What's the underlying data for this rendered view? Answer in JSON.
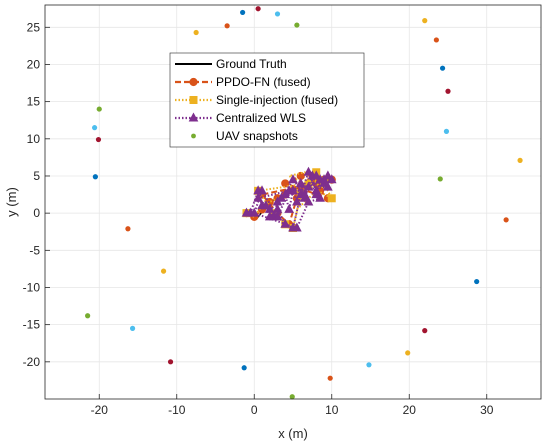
{
  "chart_data": {
    "type": "line",
    "title": "",
    "xlabel": "x (m)",
    "ylabel": "y (m)",
    "xlim": [
      -27,
      37
    ],
    "ylim": [
      -25,
      28
    ],
    "xticks": [
      -20,
      -10,
      0,
      10,
      20,
      30
    ],
    "yticks": [
      -20,
      -15,
      -10,
      -5,
      0,
      5,
      10,
      15,
      20,
      25
    ],
    "xtick_labels": [
      "-20",
      "-10",
      "0",
      "10",
      "20",
      "30"
    ],
    "ytick_labels": [
      "-20",
      "-15",
      "-10",
      "-5",
      "0",
      "5",
      "10",
      "15",
      "20",
      "25"
    ],
    "grid": true,
    "legend_position": "upper-center",
    "series": [
      {
        "name": "Ground Truth",
        "color": "#000000",
        "style": "solid",
        "marker": "none",
        "x": [
          -1,
          0.5,
          2,
          3,
          4.5,
          6,
          7.5,
          9,
          10
        ],
        "y": [
          0,
          -0.5,
          1.5,
          2,
          3,
          3.5,
          4,
          4.5,
          4.5
        ]
      },
      {
        "name": "PPDO-FN (fused)",
        "color": "#D95319",
        "style": "dashed",
        "marker": "circle",
        "x": [
          -1,
          0,
          1,
          2,
          3,
          4,
          5,
          6,
          7,
          8,
          9,
          10,
          1,
          3,
          4.5,
          5.5,
          6.5,
          7.5,
          8.5,
          9.5,
          4,
          6,
          8
        ],
        "y": [
          0,
          -0.5,
          0.5,
          1.5,
          2,
          2.5,
          3,
          3.5,
          4,
          4.5,
          4.5,
          4.5,
          2.5,
          0,
          -1.5,
          2,
          3.5,
          5,
          3,
          2,
          4,
          5,
          4
        ]
      },
      {
        "name": "Single-injection (fused)",
        "color": "#EDB120",
        "style": "dotted",
        "marker": "square",
        "x": [
          -1,
          0,
          1,
          2,
          3,
          4,
          5,
          6,
          7,
          8,
          9,
          10,
          0.5,
          2.5,
          4,
          5,
          6,
          7,
          8,
          9,
          10,
          4.5,
          6.5,
          8.5,
          5.5
        ],
        "y": [
          0,
          -0.5,
          1,
          1.5,
          2,
          2.5,
          3,
          3.5,
          4,
          4.5,
          5,
          4.5,
          3,
          0,
          -1.5,
          -2,
          2.5,
          4,
          5.5,
          4,
          2,
          5,
          5.5,
          3.5,
          0.5
        ],
        "markers": {
          "x": [
            -1,
            0.5,
            2.5,
            4,
            5,
            6,
            7,
            8,
            9,
            10
          ],
          "y": [
            0,
            3,
            0,
            -1.5,
            -2,
            2.5,
            4,
            5.5,
            4,
            2
          ]
        }
      },
      {
        "name": "Centralized WLS",
        "color": "#7E2F8E",
        "style": "dotted",
        "marker": "triangle",
        "x": [
          -1,
          -0.5,
          0.5,
          1,
          2,
          2.5,
          3,
          4,
          4.5,
          5,
          5.5,
          6,
          6.5,
          7,
          7.5,
          8,
          8.5,
          9,
          9.5,
          10,
          0.5,
          1.5,
          2,
          3,
          4,
          5,
          6,
          7,
          8,
          9,
          3.5,
          5,
          6.5,
          8,
          9.5,
          4.5,
          3,
          1,
          0,
          5.5,
          7,
          8.5
        ],
        "y": [
          0,
          0,
          3,
          1,
          0.5,
          -0.5,
          1.5,
          2.5,
          0.5,
          3,
          1.5,
          4,
          2,
          3.5,
          5,
          2.5,
          4.5,
          4,
          5,
          4.5,
          2,
          1,
          -0.5,
          0.5,
          -1.5,
          -2,
          2.5,
          5.5,
          3,
          4.5,
          2,
          4.5,
          2.5,
          5,
          3.5,
          3,
          -0.5,
          3,
          0,
          -2,
          1.5,
          2
        ]
      },
      {
        "name": "UAV snapshots",
        "color": "#77AC30",
        "style": "none",
        "marker": "dot",
        "x": [],
        "y": []
      }
    ],
    "uav_points": [
      {
        "x": -1.5,
        "y": 27,
        "color": "#0072BD"
      },
      {
        "x": 0.5,
        "y": 27.5,
        "color": "#A2142F"
      },
      {
        "x": 3,
        "y": 26.8,
        "color": "#4DBEEE"
      },
      {
        "x": 5.5,
        "y": 25.3,
        "color": "#77AC30"
      },
      {
        "x": -3.5,
        "y": 25.2,
        "color": "#D95319"
      },
      {
        "x": -7.5,
        "y": 24.3,
        "color": "#EDB120"
      },
      {
        "x": 22,
        "y": 25.9,
        "color": "#EDB120"
      },
      {
        "x": 23.5,
        "y": 23.3,
        "color": "#D95319"
      },
      {
        "x": 24.3,
        "y": 19.5,
        "color": "#0072BD"
      },
      {
        "x": 25,
        "y": 16.4,
        "color": "#A2142F"
      },
      {
        "x": 24.8,
        "y": 11,
        "color": "#4DBEEE"
      },
      {
        "x": 34.3,
        "y": 7.1,
        "color": "#EDB120"
      },
      {
        "x": 24,
        "y": 4.6,
        "color": "#77AC30"
      },
      {
        "x": 32.5,
        "y": -0.9,
        "color": "#D95319"
      },
      {
        "x": 28.7,
        "y": -9.2,
        "color": "#0072BD"
      },
      {
        "x": 22,
        "y": -15.8,
        "color": "#A2142F"
      },
      {
        "x": 19.8,
        "y": -18.8,
        "color": "#EDB120"
      },
      {
        "x": 14.8,
        "y": -20.4,
        "color": "#4DBEEE"
      },
      {
        "x": 9.8,
        "y": -22.2,
        "color": "#D95319"
      },
      {
        "x": 4.9,
        "y": -24.7,
        "color": "#77AC30"
      },
      {
        "x": -1.3,
        "y": -20.8,
        "color": "#0072BD"
      },
      {
        "x": -10.8,
        "y": -20,
        "color": "#A2142F"
      },
      {
        "x": -15.7,
        "y": -15.5,
        "color": "#4DBEEE"
      },
      {
        "x": -21.5,
        "y": -13.8,
        "color": "#77AC30"
      },
      {
        "x": -11.7,
        "y": -7.8,
        "color": "#EDB120"
      },
      {
        "x": -16.3,
        "y": -2.1,
        "color": "#D95319"
      },
      {
        "x": -20.5,
        "y": 4.9,
        "color": "#0072BD"
      },
      {
        "x": -20.1,
        "y": 9.9,
        "color": "#A2142F"
      },
      {
        "x": -20.6,
        "y": 11.5,
        "color": "#4DBEEE"
      },
      {
        "x": -20,
        "y": 14,
        "color": "#77AC30"
      }
    ]
  }
}
